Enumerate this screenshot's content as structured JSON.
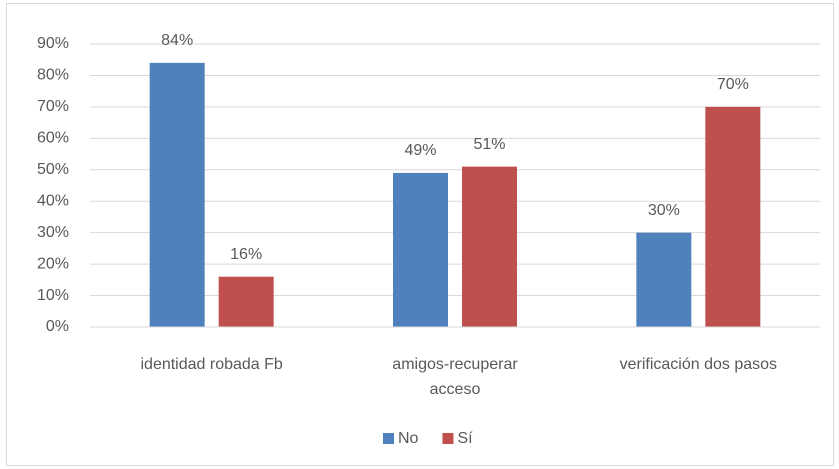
{
  "chart_data": {
    "type": "bar",
    "categories": [
      "identidad robada Fb",
      "amigos-recuperar acceso",
      "verificación dos pasos"
    ],
    "series": [
      {
        "name": "No",
        "color": "#4f81bd",
        "values": [
          84,
          49,
          30
        ],
        "value_labels": [
          "84%",
          "49%",
          "30%"
        ]
      },
      {
        "name": "Sí",
        "color": "#c0504d",
        "values": [
          16,
          51,
          70
        ],
        "value_labels": [
          "16%",
          "51%",
          "70%"
        ]
      }
    ],
    "ylim": [
      0,
      90
    ],
    "yticks": [
      {
        "value": 0,
        "label": "0%"
      },
      {
        "value": 10,
        "label": "10%"
      },
      {
        "value": 20,
        "label": "20%"
      },
      {
        "value": 30,
        "label": "30%"
      },
      {
        "value": 40,
        "label": "40%"
      },
      {
        "value": 50,
        "label": "50%"
      },
      {
        "value": 60,
        "label": "60%"
      },
      {
        "value": 70,
        "label": "70%"
      },
      {
        "value": 80,
        "label": "80%"
      },
      {
        "value": 90,
        "label": "90%"
      }
    ],
    "grid": true,
    "legend": "bottom"
  }
}
